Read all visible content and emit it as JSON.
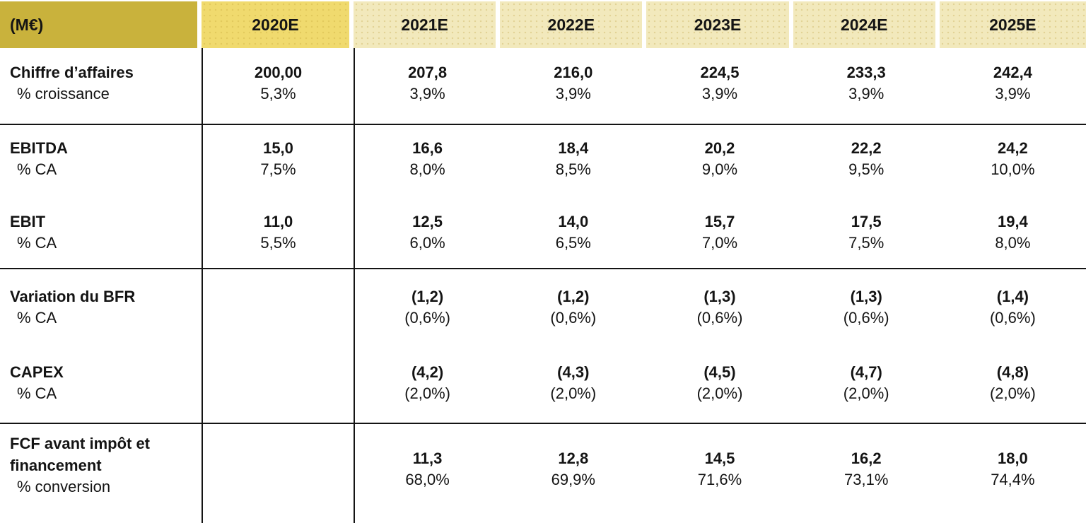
{
  "colors": {
    "header_unit_bg": "#c9b23c",
    "header_2020_bg": "#f0da6e",
    "header_years_bg": "#f2e9bc",
    "text": "#141414",
    "grid_line": "#141414"
  },
  "table": {
    "unit_label": "(M€)",
    "columns": [
      "2020E",
      "2021E",
      "2022E",
      "2023E",
      "2024E",
      "2025E"
    ],
    "sections": [
      {
        "rows": [
          {
            "label": "Chiffre d’affaires",
            "sublabel": "% croissance",
            "values": [
              "200,00",
              "207,8",
              "216,0",
              "224,5",
              "233,3",
              "242,4"
            ],
            "subvalues": [
              "5,3%",
              "3,9%",
              "3,9%",
              "3,9%",
              "3,9%",
              "3,9%"
            ]
          }
        ]
      },
      {
        "rows": [
          {
            "label": "EBITDA",
            "sublabel": "% CA",
            "values": [
              "15,0",
              "16,6",
              "18,4",
              "20,2",
              "22,2",
              "24,2"
            ],
            "subvalues": [
              "7,5%",
              "8,0%",
              "8,5%",
              "9,0%",
              "9,5%",
              "10,0%"
            ]
          },
          {
            "label": "EBIT",
            "sublabel": "% CA",
            "values": [
              "11,0",
              "12,5",
              "14,0",
              "15,7",
              "17,5",
              "19,4"
            ],
            "subvalues": [
              "5,5%",
              "6,0%",
              "6,5%",
              "7,0%",
              "7,5%",
              "8,0%"
            ]
          }
        ]
      },
      {
        "rows": [
          {
            "label": "Variation du BFR",
            "sublabel": "% CA",
            "values": [
              "",
              "(1,2)",
              "(1,2)",
              "(1,3)",
              "(1,3)",
              "(1,4)"
            ],
            "subvalues": [
              "",
              "(0,6%)",
              "(0,6%)",
              "(0,6%)",
              "(0,6%)",
              "(0,6%)"
            ]
          },
          {
            "label": "CAPEX",
            "sublabel": "% CA",
            "values": [
              "",
              "(4,2)",
              "(4,3)",
              "(4,5)",
              "(4,7)",
              "(4,8)"
            ],
            "subvalues": [
              "",
              "(2,0%)",
              "(2,0%)",
              "(2,0%)",
              "(2,0%)",
              "(2,0%)"
            ]
          }
        ]
      },
      {
        "rows": [
          {
            "label": "FCF avant impôt et financement",
            "sublabel": "% conversion",
            "values": [
              "",
              "11,3",
              "12,8",
              "14,5",
              "16,2",
              "18,0"
            ],
            "subvalues": [
              "",
              "68,0%",
              "69,9%",
              "71,6%",
              "73,1%",
              "74,4%"
            ]
          }
        ]
      }
    ]
  }
}
